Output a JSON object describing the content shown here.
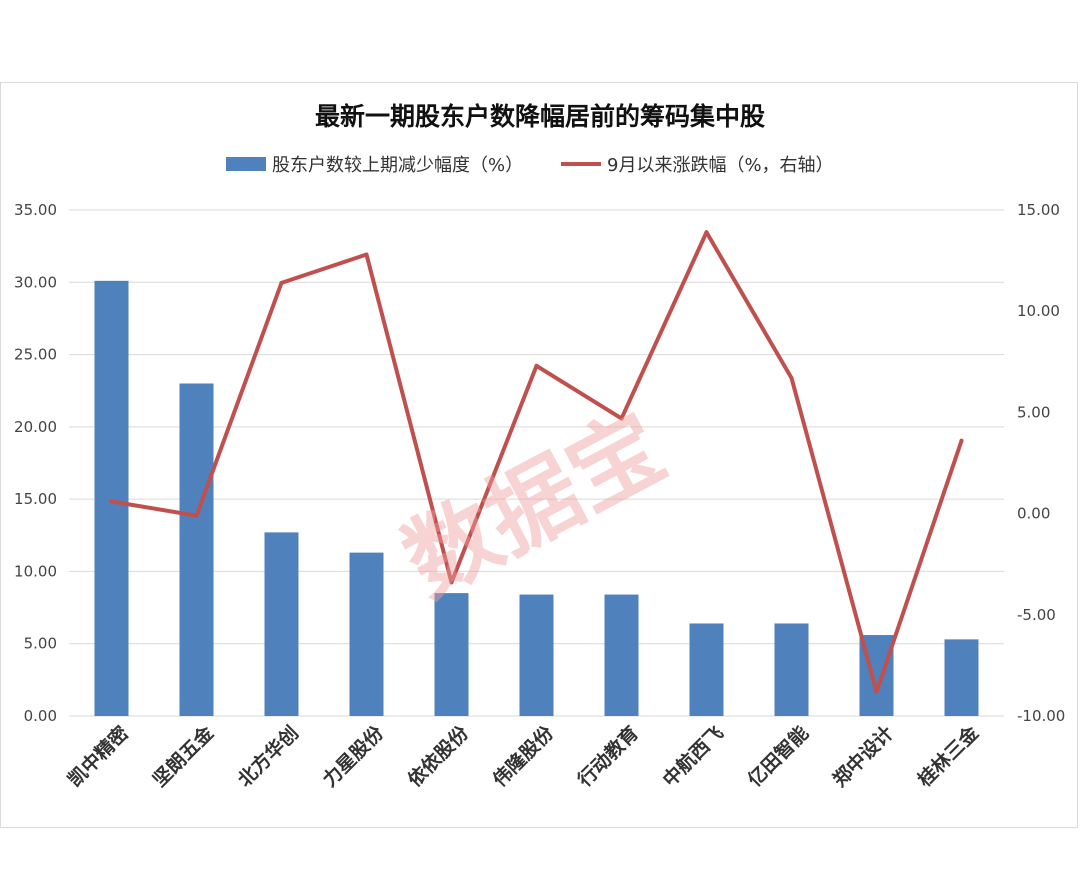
{
  "watermark": "数据宝",
  "chart_data": {
    "type": "bar",
    "title": "最新一期股东户数降幅居前的筹码集中股",
    "categories": [
      "凯中精密",
      "坚朗五金",
      "北方华创",
      "力星股份",
      "依依股份",
      "伟隆股份",
      "行动教育",
      "中航西飞",
      "亿田智能",
      "郑中设计",
      "桂林三金"
    ],
    "series": [
      {
        "name": "股东户数较上期减少幅度（%）",
        "type": "bar",
        "axis": "left",
        "color": "#4f81bd",
        "values": [
          30.1,
          23.0,
          12.7,
          11.3,
          8.5,
          8.4,
          8.4,
          6.4,
          6.4,
          5.6,
          5.3
        ]
      },
      {
        "name": "9月以来涨跌幅（%，右轴）",
        "type": "line",
        "axis": "right",
        "color": "#c0504d",
        "values": [
          0.6,
          -0.1,
          11.4,
          12.8,
          -3.4,
          7.3,
          4.7,
          13.9,
          6.7,
          -8.8,
          3.6
        ]
      }
    ],
    "y_left": {
      "lim": [
        0,
        35
      ],
      "step": 5,
      "ticks": [
        "0.00",
        "5.00",
        "10.00",
        "15.00",
        "20.00",
        "25.00",
        "30.00",
        "35.00"
      ]
    },
    "y_right": {
      "lim": [
        -10,
        15
      ],
      "step": 5,
      "ticks": [
        "-10.00",
        "-5.00",
        "0.00",
        "5.00",
        "10.00",
        "15.00"
      ]
    },
    "grid": true,
    "legend": "top-center"
  }
}
